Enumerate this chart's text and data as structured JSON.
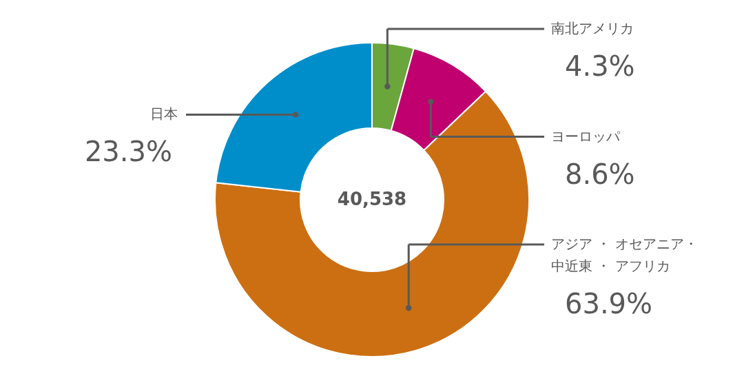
{
  "chart_data": {
    "type": "donut",
    "categories": [
      "南北アメリカ",
      "ヨーロッパ",
      "アジア ・ オセアニア・中近東 ・ アフリカ",
      "日本"
    ],
    "values": [
      4.3,
      8.6,
      63.9,
      23.3
    ],
    "value_labels": [
      "4.3%",
      "8.6%",
      "63.9%",
      "23.3%"
    ],
    "colors": [
      "#6aa63c",
      "#c0006e",
      "#cc6f12",
      "#008ecb"
    ],
    "annotations": [
      "40,538"
    ]
  }
}
